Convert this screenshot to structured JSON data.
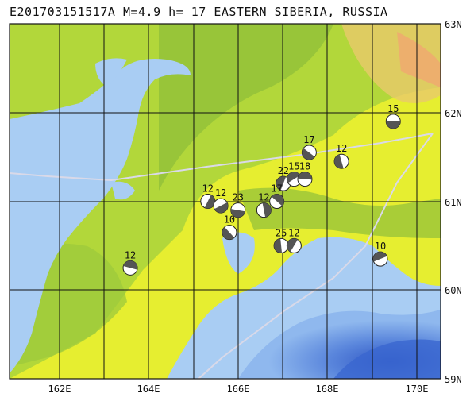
{
  "title": "E201703151517A M=4.9 h= 17 EASTERN SIBERIA, RUSSIA",
  "colors": {
    "sea": "#a9cdf3",
    "sea_deep": "#5f8fe0",
    "sea_deepest": "#3a66cf",
    "land_low": "#e8ef2c",
    "land_mid": "#b5d83c",
    "land_green": "#8fc23a",
    "land_high": "#f1bf7a",
    "grid": "#111111",
    "track": "#d9d9e8",
    "beachball_dark": "#555555"
  },
  "axes": {
    "lon_labels": [
      "162E",
      "164E",
      "166E",
      "168E",
      "170E"
    ],
    "lat_labels": [
      "63N",
      "62N",
      "61N",
      "60N",
      "59N"
    ]
  },
  "events": [
    {
      "mag": "15",
      "lon": 169.9,
      "lat": 61.9
    },
    {
      "mag": "17",
      "lon": 167.95,
      "lat": 61.55
    },
    {
      "mag": "12",
      "lon": 168.7,
      "lat": 61.45
    },
    {
      "mag": "22",
      "lon": 167.35,
      "lat": 61.2
    },
    {
      "mag": "15",
      "lon": 167.6,
      "lat": 61.25
    },
    {
      "mag": "18",
      "lon": 167.85,
      "lat": 61.25
    },
    {
      "mag": "17",
      "lon": 167.2,
      "lat": 61.0
    },
    {
      "mag": "12",
      "lon": 166.9,
      "lat": 60.9
    },
    {
      "mag": "12",
      "lon": 165.6,
      "lat": 61.0
    },
    {
      "mag": "12",
      "lon": 165.9,
      "lat": 60.95
    },
    {
      "mag": "23",
      "lon": 166.3,
      "lat": 60.9
    },
    {
      "mag": "10",
      "lon": 166.1,
      "lat": 60.65
    },
    {
      "mag": "25",
      "lon": 167.3,
      "lat": 60.5
    },
    {
      "mag": "12",
      "lon": 167.6,
      "lat": 60.5
    },
    {
      "mag": "10",
      "lon": 169.6,
      "lat": 60.35
    },
    {
      "mag": "12",
      "lon": 163.8,
      "lat": 60.25
    }
  ]
}
